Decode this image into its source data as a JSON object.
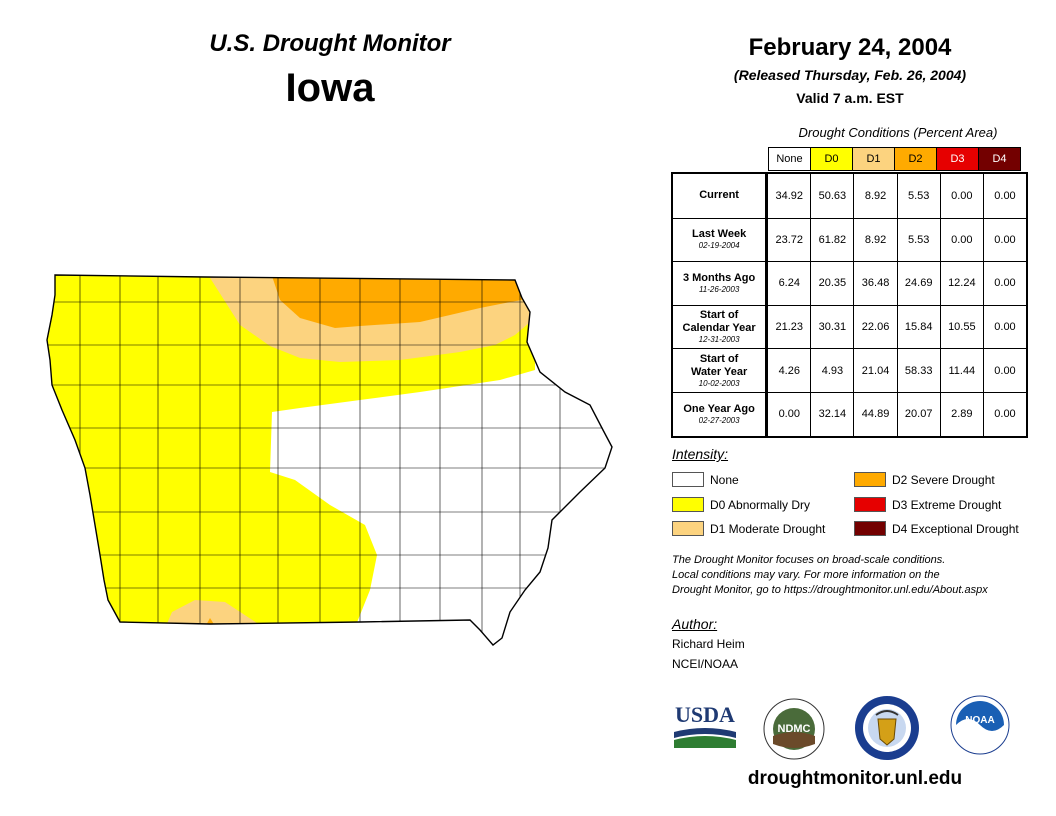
{
  "header": {
    "title": "U.S. Drought Monitor",
    "state": "Iowa",
    "date": "February 24, 2004",
    "released": "(Released Thursday, Feb. 26, 2004)",
    "valid": "Valid 7 a.m. EST"
  },
  "conditions": {
    "caption": "Drought Conditions (Percent Area)",
    "columns": [
      {
        "label": "None",
        "color": "#ffffff",
        "text_color": "#000000"
      },
      {
        "label": "D0",
        "color": "#ffff00",
        "text_color": "#000000"
      },
      {
        "label": "D1",
        "color": "#fcd37f",
        "text_color": "#000000"
      },
      {
        "label": "D2",
        "color": "#ffaa00",
        "text_color": "#000000"
      },
      {
        "label": "D3",
        "color": "#e60000",
        "text_color": "#ffffff"
      },
      {
        "label": "D4",
        "color": "#730000",
        "text_color": "#ffffff"
      }
    ],
    "rows": [
      {
        "label": "Current",
        "sub": "",
        "values": [
          "34.92",
          "50.63",
          "8.92",
          "5.53",
          "0.00",
          "0.00"
        ]
      },
      {
        "label": "Last Week",
        "sub": "02-19-2004",
        "values": [
          "23.72",
          "61.82",
          "8.92",
          "5.53",
          "0.00",
          "0.00"
        ]
      },
      {
        "label": "3 Months Ago",
        "sub": "11-26-2003",
        "values": [
          "6.24",
          "20.35",
          "36.48",
          "24.69",
          "12.24",
          "0.00"
        ]
      },
      {
        "label": "Start of\nCalendar Year",
        "sub": "12-31-2003",
        "values": [
          "21.23",
          "30.31",
          "22.06",
          "15.84",
          "10.55",
          "0.00"
        ]
      },
      {
        "label": "Start of\nWater Year",
        "sub": "10-02-2003",
        "values": [
          "4.26",
          "4.93",
          "21.04",
          "58.33",
          "11.44",
          "0.00"
        ]
      },
      {
        "label": "One Year Ago",
        "sub": "02-27-2003",
        "values": [
          "0.00",
          "32.14",
          "44.89",
          "20.07",
          "2.89",
          "0.00"
        ]
      }
    ]
  },
  "legend": {
    "title": "Intensity:",
    "items": [
      {
        "label": "None",
        "color": "#ffffff"
      },
      {
        "label": "D0 Abnormally Dry",
        "color": "#ffff00"
      },
      {
        "label": "D1 Moderate Drought",
        "color": "#fcd37f"
      },
      {
        "label": "D2 Severe Drought",
        "color": "#ffaa00"
      },
      {
        "label": "D3 Extreme Drought",
        "color": "#e60000"
      },
      {
        "label": "D4 Exceptional Drought",
        "color": "#730000"
      }
    ]
  },
  "note": {
    "line1": "The Drought Monitor focuses on broad-scale conditions.",
    "line2": "Local conditions may vary. For more information on the",
    "line3": "Drought Monitor, go to https://droughtmonitor.unl.edu/About.aspx"
  },
  "author": {
    "title": "Author:",
    "name": "Richard Heim",
    "org": "NCEI/NOAA"
  },
  "logos": {
    "usda": "USDA",
    "ndmc": "NDMC",
    "noaa": "NOAA"
  },
  "footer": {
    "site": "droughtmonitor.unl.edu"
  }
}
